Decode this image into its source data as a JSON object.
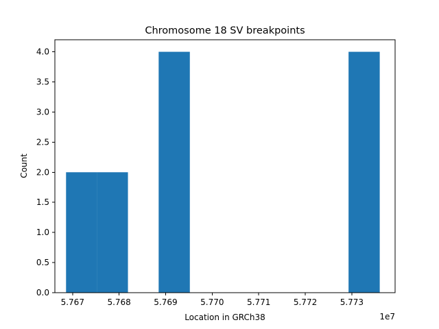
{
  "chart_data": {
    "type": "bar",
    "title": "Chromosome 18 SV breakpoints",
    "xlabel": "Location in GRCh38",
    "ylabel": "Count",
    "x_offset_label": "1e7",
    "x_scale": 10000000,
    "xlim": [
      5.76662,
      5.77393
    ],
    "ylim": [
      0,
      4.2
    ],
    "x_ticks": [
      5.767,
      5.768,
      5.769,
      5.77,
      5.771,
      5.772,
      5.773
    ],
    "x_tick_labels": [
      "5.767",
      "5.768",
      "5.769",
      "5.770",
      "5.771",
      "5.772",
      "5.773"
    ],
    "y_ticks": [
      0,
      0.5,
      1,
      1.5,
      2,
      2.5,
      3,
      3.5,
      4
    ],
    "y_tick_labels": [
      "0.0",
      "0.5",
      "1.0",
      "1.5",
      "2.0",
      "2.5",
      "3.0",
      "3.5",
      "4.0"
    ],
    "bar_color": "#1f77b4",
    "grid": false,
    "bins": [
      {
        "x0": 5.76686,
        "x1": 5.76752,
        "count": 2
      },
      {
        "x0": 5.76752,
        "x1": 5.76819,
        "count": 2
      },
      {
        "x0": 5.76885,
        "x1": 5.76952,
        "count": 4
      },
      {
        "x0": 5.77293,
        "x1": 5.7736,
        "count": 4
      }
    ]
  }
}
